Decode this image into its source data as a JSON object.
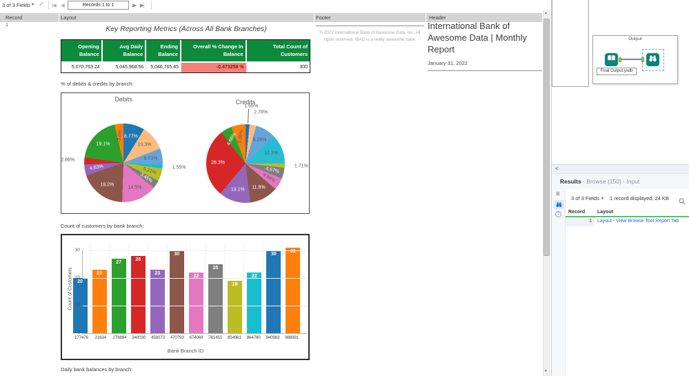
{
  "icons": {
    "check": "✓",
    "caret": "▾",
    "first": "|◀",
    "prev": "◀",
    "next": "▶",
    "last": "▶|",
    "collapse": "<",
    "help": "?",
    "list": "≡",
    "up": "▲",
    "down": "▼"
  },
  "colors": {
    "table_header_green": "#0e8a3d",
    "negative_cell_bg": "#f5827a",
    "negative_text": "#7c1818",
    "link_blue": "#2a66c9",
    "results_green_underline": "#43cf5c",
    "tool_teal": "#0b8577",
    "selection_blue": "#66aae6",
    "record_number_maroon": "#8b3b2e"
  },
  "browse_toolbar": {
    "fields_label": "3 of 3 Fields",
    "records_label": "Records 1 to 1"
  },
  "grid": {
    "columns": [
      "Record",
      "Layout",
      "Footer",
      "Header"
    ],
    "record_number": "1"
  },
  "report": {
    "title": "Key Reporting Metrics (Across All Bank Branches)",
    "metrics_table": {
      "headers": [
        "Opening Balance",
        "Avg Daily Balance",
        "Ending Balance",
        "Overall % Change In Balance",
        "Total Count of Customers"
      ],
      "values": [
        "5,070,763.24",
        "5,045,968.56",
        "5,046,765.45",
        "-0.473258 %",
        "300"
      ]
    },
    "section_pies": "% of debits & credits by branch:",
    "section_bars": "Count of customers by bank branch:",
    "section_daily": "Daily bank balances by branch:"
  },
  "footer_cell": {
    "line1": "© 2022 International Bank of Awesome Data, Inc. All",
    "line2": "rights reserved. IBAD is a really awesome bank."
  },
  "header_cell": {
    "title": "International Bank of Awesome Data | Monthly Report",
    "date": "January 31, 2022"
  },
  "canvas": {
    "container_title": "Output",
    "output_tool_label": "Final Output.yxdb"
  },
  "results_panel": {
    "title_bold": "Results",
    "title_rest": " - Browse (150) - Input",
    "fields_label": "3 of 3 Fields",
    "record_info": "1 record displayed, 24 KB",
    "table": {
      "headers": [
        "Record",
        "Layout"
      ],
      "rows": [
        [
          "1",
          "Layout - View Browse Tool Report Tab"
        ]
      ]
    }
  },
  "chart_data": [
    {
      "type": "pie",
      "title": "Debits",
      "slices": [
        {
          "label": "8.77%",
          "value": 8.77,
          "color": "#1f77b4",
          "text": "#ffffff",
          "place": "in",
          "rot": 0
        },
        {
          "label": "10.3%",
          "value": 10.3,
          "color": "#fdbb7d",
          "text": "#595959",
          "place": "in",
          "rot": 0
        },
        {
          "label": "6.73%",
          "value": 6.73,
          "color": "#64a5dc",
          "text": "#595959",
          "place": "in",
          "rot": 0
        },
        {
          "label": "1.55%",
          "value": 1.55,
          "color": "#17becf",
          "text": "#595959",
          "place": "out",
          "rot": 0
        },
        {
          "label": "5.21%",
          "value": 5.21,
          "color": "#bcbd22",
          "text": "#595959",
          "place": "in",
          "rot": 18
        },
        {
          "label": "3.45%",
          "value": 3.45,
          "color": "#7f7f7f",
          "text": "#ffffff",
          "place": "in",
          "rot": 33
        },
        {
          "label": "14.5%",
          "value": 14.5,
          "color": "#e377c2",
          "text": "#595959",
          "place": "in",
          "rot": 0
        },
        {
          "label": "19.2%",
          "value": 19.2,
          "color": "#8c564b",
          "text": "#ffffff",
          "place": "in",
          "rot": 0
        },
        {
          "label": "4.63%",
          "value": 4.63,
          "color": "#9467bd",
          "text": "#ffffff",
          "place": "in",
          "rot": -11
        },
        {
          "label": "2.86%",
          "value": 2.86,
          "color": "#d62728",
          "text": "#595959",
          "place": "out",
          "rot": 0
        },
        {
          "label": "19.1%",
          "value": 19.1,
          "color": "#2ca02c",
          "text": "#ffffff",
          "place": "in",
          "rot": 0
        },
        {
          "label": "3.6%",
          "value": 3.6,
          "color": "#ff7f0e",
          "text": "#595959",
          "place": "in",
          "rot": -83
        }
      ]
    },
    {
      "type": "pie",
      "title": "Credits",
      "slices": [
        {
          "label": "1.65%",
          "value": 1.65,
          "color": "#1f77b4",
          "text": "#595959",
          "place": "out",
          "rot": 0,
          "leader": true,
          "f": 1.45
        },
        {
          "label": "2.78%",
          "value": 2.78,
          "color": "#fdbb7d",
          "text": "#595959",
          "place": "out",
          "rot": 0,
          "f": 1.32
        },
        {
          "label": "8.28%",
          "value": 8.28,
          "color": "#64a5dc",
          "text": "#595959",
          "place": "in",
          "rot": 0
        },
        {
          "label": "12.3%",
          "value": 12.3,
          "color": "#29bdd4",
          "text": "#595959",
          "place": "in",
          "rot": 0
        },
        {
          "label": "1.71%",
          "value": 1.71,
          "color": "#bcbd22",
          "text": "#595959",
          "place": "out",
          "rot": 0
        },
        {
          "label": "4.57%",
          "value": 4.57,
          "color": "#7f7f7f",
          "text": "#ffffff",
          "place": "in",
          "rot": 14
        },
        {
          "label": "4.94%",
          "value": 4.94,
          "color": "#e377c2",
          "text": "#595959",
          "place": "in",
          "rot": 31
        },
        {
          "label": "11.8%",
          "value": 11.8,
          "color": "#8c564b",
          "text": "#ffffff",
          "place": "in",
          "rot": 0
        },
        {
          "label": "13.1%",
          "value": 13.1,
          "color": "#9467bd",
          "text": "#ffffff",
          "place": "in",
          "rot": 0
        },
        {
          "label": "28.3%",
          "value": 28.3,
          "color": "#d62728",
          "text": "#ffffff",
          "place": "in",
          "rot": 0
        },
        {
          "label": "4.66%",
          "value": 4.66,
          "color": "#2ca02c",
          "text": "#ffffff",
          "place": "in",
          "rot": -60
        },
        {
          "label": "5.86%",
          "value": 5.86,
          "color": "#ff7f0e",
          "text": "#595959",
          "place": "in",
          "rot": -79
        }
      ]
    },
    {
      "type": "bar",
      "title": "Count of customers by bank branch",
      "categories": [
        "177476",
        "21634",
        "278884",
        "340030",
        "458073",
        "470793",
        "674069",
        "761451",
        "854961",
        "864780",
        "940983",
        "988991"
      ],
      "values": [
        20,
        23,
        27,
        28,
        23,
        30,
        22,
        25,
        19,
        22,
        30,
        31
      ],
      "colors": [
        "#1f77b4",
        "#ff7f0e",
        "#2ca02c",
        "#d62728",
        "#9467bd",
        "#8c564b",
        "#e377c2",
        "#7f7f7f",
        "#bcbd22",
        "#17becf",
        "#1f77b4",
        "#ff7f0e"
      ],
      "xlabel": "Bank Branch ID",
      "ylabel": "Count of Customers",
      "yticks": [
        0,
        10,
        20,
        30
      ],
      "ylim": [
        0,
        33
      ],
      "grid": true,
      "legend": false
    }
  ]
}
